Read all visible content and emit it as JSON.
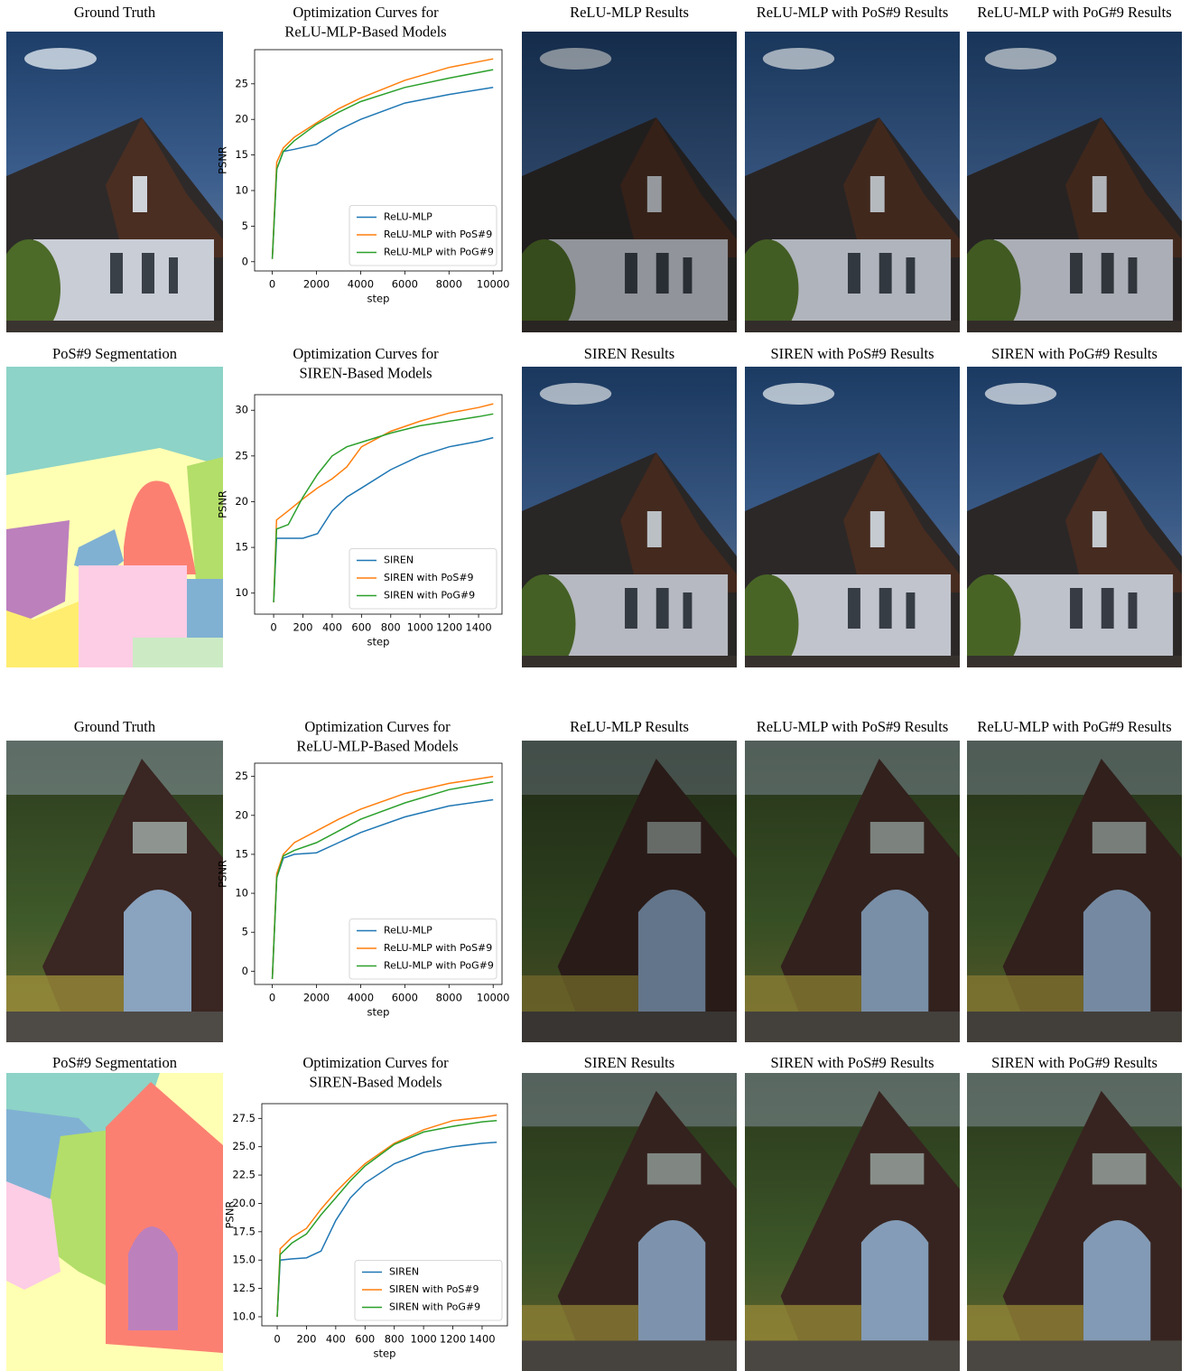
{
  "groups": [
    {
      "rows": [
        [
          "Ground Truth",
          "ReLU-MLP Results",
          "ReLU-MLP with PoS#9 Results",
          "ReLU-MLP with PoG#9 Results"
        ],
        [
          "PoS#9 Segmentation",
          "SIREN Results",
          "SIREN with PoS#9 Results",
          "SIREN with PoG#9 Results"
        ]
      ]
    },
    {
      "rows": [
        [
          "Ground Truth",
          "ReLU-MLP Results",
          "ReLU-MLP with PoS#9 Results",
          "ReLU-MLP with PoG#9 Results"
        ],
        [
          "PoS#9 Segmentation",
          "SIREN Results",
          "SIREN with PoS#9 Results",
          "SIREN with PoG#9 Results"
        ]
      ]
    }
  ],
  "chart_data": [
    {
      "type": "line",
      "title": [
        "Optimization Curves for",
        "ReLU-MLP-Based Models"
      ],
      "x_label": "step",
      "y_label": "PSNR",
      "x": [
        0,
        200,
        500,
        1000,
        2000,
        3000,
        4000,
        6000,
        8000,
        10000
      ],
      "series": [
        {
          "name": "ReLU-MLP",
          "color": "#1f77b4",
          "values": [
            0.4,
            13,
            15.5,
            15.8,
            16.5,
            18.5,
            20,
            22.3,
            23.5,
            24.5
          ]
        },
        {
          "name": "ReLU-MLP with PoS#9",
          "color": "#ff7f0e",
          "values": [
            0.4,
            14,
            16,
            17.5,
            19.5,
            21.5,
            23,
            25.5,
            27.3,
            28.5
          ]
        },
        {
          "name": "ReLU-MLP with PoG#9",
          "color": "#2ca02c",
          "values": [
            0.4,
            13,
            15.5,
            17,
            19.3,
            21,
            22.5,
            24.5,
            25.8,
            27
          ]
        }
      ],
      "xlim": [
        -800,
        10400
      ],
      "xticks": [
        0,
        2000,
        4000,
        6000,
        8000,
        10000
      ],
      "ylim": [
        -1.3,
        29.8
      ],
      "yticks": [
        0,
        5,
        10,
        15,
        20,
        25
      ],
      "legend": "lower right"
    },
    {
      "type": "line",
      "title": [
        "Optimization Curves for",
        "SIREN-Based Models"
      ],
      "x_label": "step",
      "y_label": "PSNR",
      "x": [
        0,
        20,
        100,
        200,
        300,
        400,
        500,
        600,
        800,
        1000,
        1200,
        1400,
        1500
      ],
      "series": [
        {
          "name": "SIREN",
          "color": "#1f77b4",
          "values": [
            9,
            16,
            16,
            16,
            16.5,
            19,
            20.5,
            21.5,
            23.5,
            25,
            26,
            26.6,
            27
          ]
        },
        {
          "name": "SIREN with PoS#9",
          "color": "#ff7f0e",
          "values": [
            9,
            18,
            19,
            20.3,
            21.5,
            22.5,
            23.8,
            26,
            27.7,
            28.8,
            29.7,
            30.3,
            30.7
          ]
        },
        {
          "name": "SIREN with PoG#9",
          "color": "#2ca02c",
          "values": [
            9,
            17,
            17.5,
            20.5,
            23,
            25,
            26,
            26.5,
            27.5,
            28.3,
            28.8,
            29.3,
            29.6
          ]
        }
      ],
      "xlim": [
        -130,
        1560
      ],
      "xticks": [
        0,
        200,
        400,
        600,
        800,
        1000,
        1200,
        1400
      ],
      "ylim": [
        7.7,
        31.7
      ],
      "yticks": [
        10,
        15,
        20,
        25,
        30
      ],
      "legend": "lower right"
    },
    {
      "type": "line",
      "title": [
        "Optimization Curves for",
        "ReLU-MLP-Based Models"
      ],
      "x_label": "step",
      "y_label": "PSNR",
      "x": [
        0,
        200,
        500,
        1000,
        2000,
        3000,
        4000,
        6000,
        8000,
        10000
      ],
      "series": [
        {
          "name": "ReLU-MLP",
          "color": "#1f77b4",
          "values": [
            -1,
            12,
            14.5,
            15,
            15.2,
            16.5,
            17.8,
            19.8,
            21.2,
            22
          ]
        },
        {
          "name": "ReLU-MLP with PoS#9",
          "color": "#ff7f0e",
          "values": [
            -1,
            12.5,
            15,
            16.5,
            18,
            19.5,
            20.8,
            22.8,
            24.1,
            25
          ]
        },
        {
          "name": "ReLU-MLP with PoG#9",
          "color": "#2ca02c",
          "values": [
            -1,
            12,
            14.8,
            15.5,
            16.5,
            18,
            19.5,
            21.6,
            23.3,
            24.3
          ]
        }
      ],
      "xlim": [
        -800,
        10400
      ],
      "xticks": [
        0,
        2000,
        4000,
        6000,
        8000,
        10000
      ],
      "ylim": [
        -1.7,
        26.7
      ],
      "yticks": [
        0,
        5,
        10,
        15,
        20,
        25
      ],
      "legend": "lower right"
    },
    {
      "type": "line",
      "title": [
        "Optimization Curves for",
        "SIREN-Based Models"
      ],
      "x_label": "step",
      "y_label": "PSNR",
      "x": [
        0,
        20,
        100,
        200,
        300,
        400,
        500,
        600,
        800,
        1000,
        1200,
        1400,
        1500
      ],
      "series": [
        {
          "name": "SIREN",
          "color": "#1f77b4",
          "values": [
            10,
            15,
            15.1,
            15.2,
            15.8,
            18.5,
            20.5,
            21.8,
            23.5,
            24.5,
            25,
            25.3,
            25.4
          ]
        },
        {
          "name": "SIREN with PoS#9",
          "color": "#ff7f0e",
          "values": [
            10,
            16,
            17,
            17.8,
            19.5,
            21,
            22.3,
            23.5,
            25.3,
            26.5,
            27.3,
            27.6,
            27.8
          ]
        },
        {
          "name": "SIREN with PoG#9",
          "color": "#2ca02c",
          "values": [
            10,
            15.5,
            16.5,
            17.3,
            19,
            20.5,
            22,
            23.3,
            25.2,
            26.3,
            26.8,
            27.2,
            27.3
          ]
        }
      ],
      "xlim": [
        -105,
        1573
      ],
      "xticks": [
        0,
        200,
        400,
        600,
        800,
        1000,
        1200,
        1400
      ],
      "ylim": [
        9.2,
        28.8
      ],
      "yticks": [
        {
          "value": 10,
          "label": "10.0"
        },
        {
          "value": 12.5,
          "label": "12.5"
        },
        {
          "value": 15,
          "label": "15.0"
        },
        {
          "value": 17.5,
          "label": "17.5"
        },
        {
          "value": 20,
          "label": "20.0"
        },
        {
          "value": 22.5,
          "label": "22.5"
        },
        {
          "value": 25,
          "label": "25.0"
        },
        {
          "value": 27.5,
          "label": "27.5"
        }
      ],
      "legend": "lower right"
    }
  ]
}
